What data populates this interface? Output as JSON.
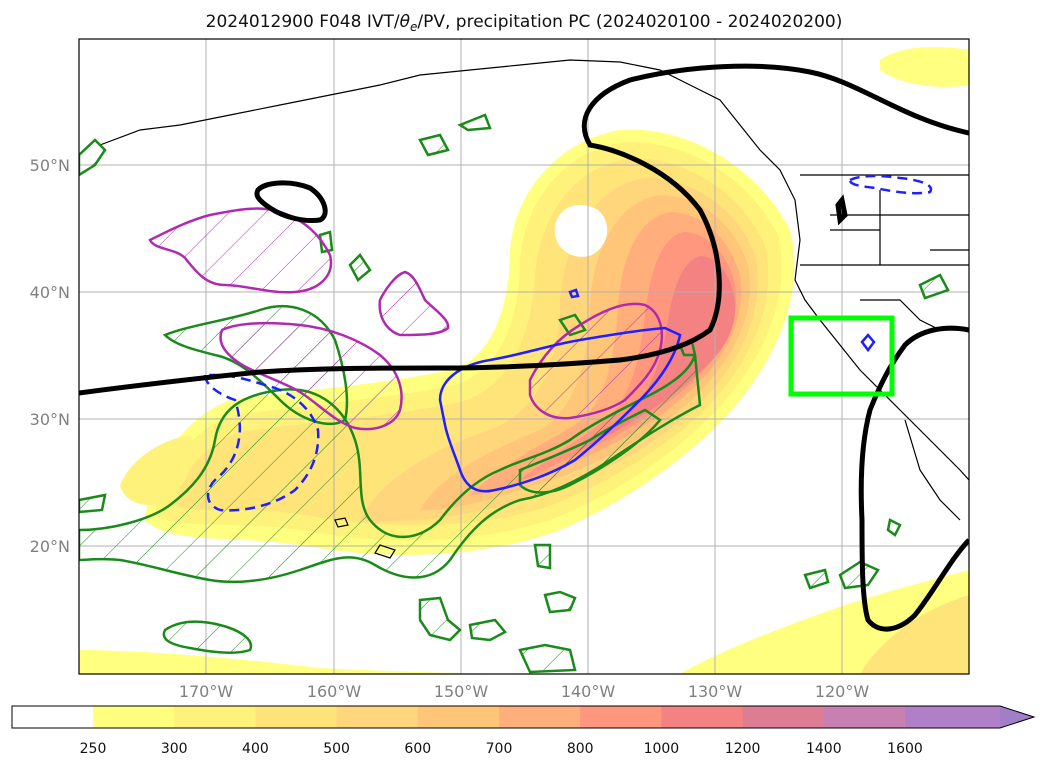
{
  "title": "2024012900 F048 IVT/θe/PV, precipitation PC (2024020100 - 2024020200)",
  "title_parts": {
    "prefix": "2024012900 F048 IVT/",
    "theta": "θ",
    "theta_sub": "e",
    "suffix": "/PV, precipitation PC (2024020100 - 2024020200)"
  },
  "map": {
    "lon_range": [
      -180,
      -110
    ],
    "lat_range": [
      10,
      60
    ],
    "lat_ticks": [
      "50°N",
      "40°N",
      "30°N",
      "20°N"
    ],
    "lon_ticks": [
      "170°W",
      "160°W",
      "150°W",
      "140°W",
      "130°W",
      "120°W"
    ],
    "grid": true,
    "target_box_color": "#00ff00",
    "target_box": {
      "lon": [
        -124,
        -116
      ],
      "lat": [
        32,
        38
      ]
    }
  },
  "legend": {
    "type": "colorbar",
    "extend": "max",
    "levels": [
      "250",
      "300",
      "400",
      "500",
      "600",
      "700",
      "800",
      "1000",
      "1200",
      "1400",
      "1600"
    ],
    "colors": [
      "#ffff80",
      "#fff27a",
      "#ffe47a",
      "#ffd67c",
      "#ffc67a",
      "#ffae7c",
      "#ff967e",
      "#f58282",
      "#dd7d94",
      "#c880b2",
      "#b07fc7",
      "#a07ec8"
    ]
  },
  "chart_data": {
    "type": "map",
    "fields": {
      "ivt_fill": {
        "units_levels": [
          250,
          300,
          400,
          500,
          600,
          700,
          800,
          1000,
          1200,
          1400,
          1600
        ],
        "max_region": "near 35-42°N, 125-130°W"
      },
      "black_contour": "bold black line",
      "green_hatched": "green hatched contours",
      "magenta_hatched": "magenta hatched contours",
      "blue_solid": "blue solid contour",
      "blue_dashed": "blue dashed contours"
    }
  }
}
